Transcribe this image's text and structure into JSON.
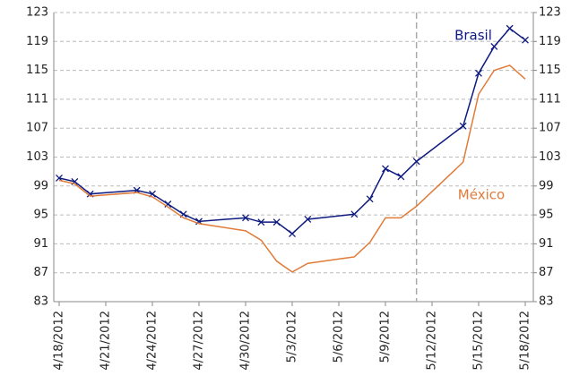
{
  "chart_data": {
    "type": "line",
    "x": [
      "4/18/2012",
      "4/19/2012",
      "4/20/2012",
      "4/23/2012",
      "4/24/2012",
      "4/25/2012",
      "4/26/2012",
      "4/27/2012",
      "4/30/2012",
      "5/1/2012",
      "5/2/2012",
      "5/3/2012",
      "5/4/2012",
      "5/7/2012",
      "5/8/2012",
      "5/9/2012",
      "5/10/2012",
      "5/11/2012",
      "5/14/2012",
      "5/15/2012",
      "5/16/2012",
      "5/17/2012",
      "5/18/2012"
    ],
    "series": [
      {
        "name": "Brasil",
        "color": "#0d1a80",
        "marker": "x",
        "values": [
          100.1,
          99.6,
          97.9,
          98.4,
          97.9,
          96.5,
          95.1,
          94.1,
          94.6,
          94.0,
          94.0,
          92.4,
          94.4,
          95.1,
          97.2,
          101.4,
          100.3,
          102.4,
          107.3,
          114.6,
          118.3,
          120.8,
          119.2
        ]
      },
      {
        "name": "México",
        "color": "#e07b39",
        "values": [
          99.8,
          99.3,
          97.6,
          98.1,
          97.5,
          96.1,
          94.6,
          93.8,
          92.8,
          91.5,
          88.6,
          87.1,
          88.3,
          89.2,
          91.2,
          94.6,
          94.6,
          96.2,
          102.3,
          111.7,
          115.0,
          115.7,
          113.8
        ]
      }
    ],
    "xlim": [
      "4/18/2012",
      "5/18/2012"
    ],
    "xticks": [
      "4/18/2012",
      "4/21/2012",
      "4/24/2012",
      "4/27/2012",
      "4/30/2012",
      "5/3/2012",
      "5/6/2012",
      "5/9/2012",
      "5/12/2012",
      "5/15/2012",
      "5/18/2012"
    ],
    "ylim": [
      83,
      123
    ],
    "yticks": [
      83,
      87,
      91,
      95,
      99,
      103,
      107,
      111,
      115,
      119,
      123
    ],
    "y2lim": [
      83,
      123
    ],
    "y2ticks": [
      83,
      87,
      91,
      95,
      99,
      103,
      107,
      111,
      115,
      119,
      123
    ],
    "vline": "5/11/2012",
    "grid": true
  }
}
